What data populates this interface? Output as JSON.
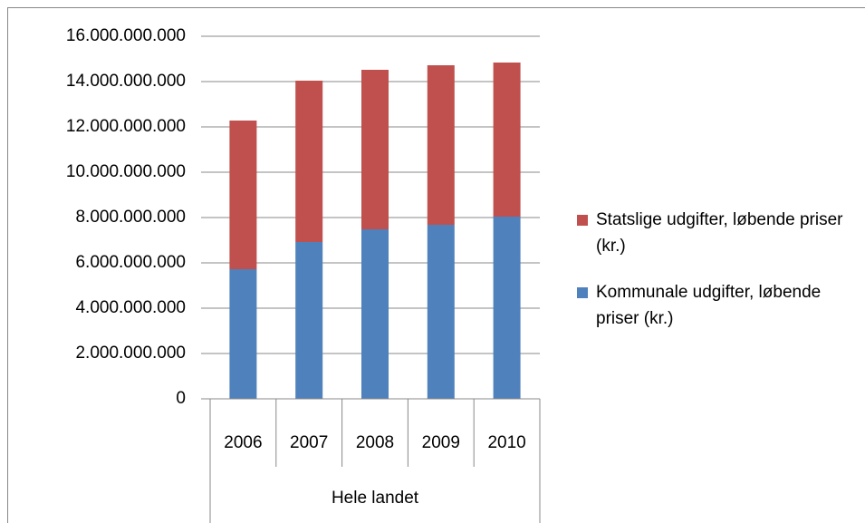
{
  "chart_data": {
    "type": "stacked_bar",
    "categories": [
      "2006",
      "2007",
      "2008",
      "2009",
      "2010"
    ],
    "x_group_label": "Hele landet",
    "series": [
      {
        "name": "Kommunale udgifter, løbende priser (kr.)",
        "color": "#4f81bd",
        "values": [
          5720000000,
          6920000000,
          7480000000,
          7680000000,
          8040000000
        ]
      },
      {
        "name": "Statslige udgifter, løbende priser (kr.)",
        "color": "#c0504d",
        "values": [
          6560000000,
          7120000000,
          7040000000,
          7040000000,
          6800000000
        ]
      }
    ],
    "ylim": [
      0,
      16000000000
    ],
    "yticks": [
      0,
      {
        "value": 2000000000,
        "label": "2.000.000.000"
      },
      {
        "value": 4000000000,
        "label": "4.000.000.000"
      },
      {
        "value": 6000000000,
        "label": "6.000.000.000"
      },
      {
        "value": 8000000000,
        "label": "8.000.000.000"
      },
      {
        "value": 10000000000,
        "label": "10.000.000.000"
      },
      {
        "value": 12000000000,
        "label": "12.000.000.000"
      },
      {
        "value": 14000000000,
        "label": "14.000.000.000"
      },
      {
        "value": 16000000000,
        "label": "16.000.000.000"
      }
    ],
    "grid": true,
    "legend": "right"
  }
}
